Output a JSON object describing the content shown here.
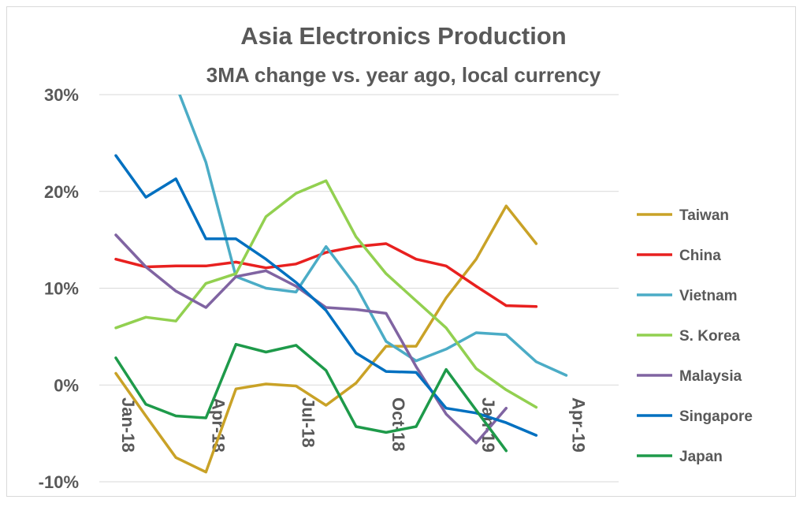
{
  "chart_data": {
    "type": "line",
    "title": "Asia Electronics Production",
    "subtitle": "3MA change vs. year ago, local currency",
    "xlabel": "",
    "ylabel": "",
    "ylim": [
      -10,
      30
    ],
    "yticks": [
      "30%",
      "20%",
      "10%",
      "0%",
      "-10%"
    ],
    "ytick_values": [
      30,
      20,
      10,
      0,
      -10
    ],
    "x_months": [
      "Jan-18",
      "Feb-18",
      "Mar-18",
      "Apr-18",
      "May-18",
      "Jun-18",
      "Jul-18",
      "Aug-18",
      "Sep-18",
      "Oct-18",
      "Nov-18",
      "Dec-18",
      "Jan-19",
      "Feb-19",
      "Mar-19",
      "Apr-19"
    ],
    "xtick_labels": [
      "Jan-18",
      "Apr-18",
      "Jul-18",
      "Oct-18",
      "Jan-19",
      "Apr-19"
    ],
    "xtick_indices": [
      0,
      3,
      6,
      9,
      12,
      15
    ],
    "grid": true,
    "legend_position": "right",
    "series": [
      {
        "name": "Taiwan",
        "color": "#c9a227",
        "values": [
          1.2,
          -3.2,
          -7.5,
          -9.0,
          -0.4,
          0.1,
          -0.1,
          -2.1,
          0.2,
          4.0,
          4.0,
          9.0,
          13.0,
          18.5,
          14.6,
          null
        ]
      },
      {
        "name": "China",
        "color": "#e8201f",
        "values": [
          13.0,
          12.2,
          12.3,
          12.3,
          12.7,
          12.1,
          12.5,
          13.7,
          14.3,
          14.6,
          13.0,
          12.3,
          10.2,
          8.2,
          8.1,
          null
        ]
      },
      {
        "name": "Vietnam",
        "color": "#4bacc6",
        "values": [
          null,
          null,
          31.0,
          23.0,
          11.2,
          10.0,
          9.6,
          14.3,
          10.2,
          4.5,
          2.5,
          3.7,
          5.4,
          5.2,
          2.4,
          1.0
        ]
      },
      {
        "name": "S. Korea",
        "color": "#92d050",
        "values": [
          5.9,
          7.0,
          6.6,
          10.5,
          11.5,
          17.4,
          19.8,
          21.1,
          15.3,
          11.5,
          8.7,
          5.9,
          1.7,
          -0.5,
          -2.3,
          null
        ]
      },
      {
        "name": "Malaysia",
        "color": "#8064a2",
        "values": [
          15.5,
          12.2,
          9.7,
          8.0,
          11.2,
          11.8,
          10.2,
          8.0,
          7.8,
          7.4,
          1.9,
          -3.0,
          -6.0,
          -2.4,
          null,
          null
        ]
      },
      {
        "name": "Singapore",
        "color": "#0070c0",
        "values": [
          23.7,
          19.4,
          21.3,
          15.1,
          15.1,
          13.0,
          10.6,
          7.7,
          3.3,
          1.4,
          1.3,
          -2.4,
          -2.9,
          -3.9,
          -5.2,
          null
        ]
      },
      {
        "name": "Japan",
        "color": "#1e9a4a",
        "values": [
          2.8,
          -2.0,
          -3.2,
          -3.4,
          4.2,
          3.4,
          4.1,
          1.5,
          -4.3,
          -4.9,
          -4.3,
          1.6,
          -2.6,
          -6.8,
          null,
          null
        ]
      }
    ]
  }
}
